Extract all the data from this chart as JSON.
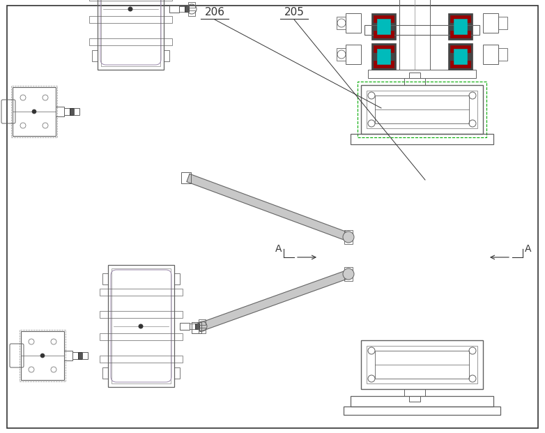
{
  "bg_color": "#ffffff",
  "lc": "#606060",
  "lc2": "#888888",
  "lc_purple": "#9988aa",
  "lc_dark": "#333333",
  "teal": "#00bbbb",
  "red_dark": "#990000",
  "dark_gray": "#444444",
  "green": "#00aa00",
  "figsize": [
    7.82,
    6.21
  ],
  "dpi": 100
}
